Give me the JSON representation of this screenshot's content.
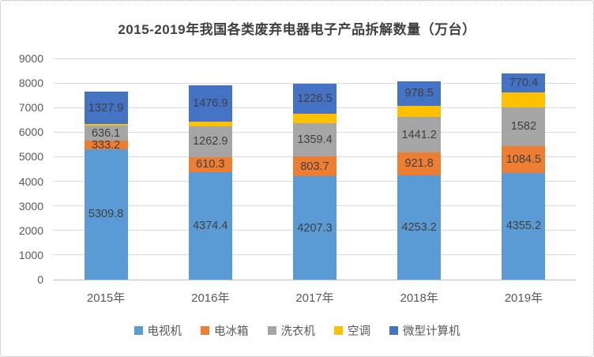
{
  "chart_data": {
    "type": "bar",
    "stacked": true,
    "title": "2015-2019年我国各类废弃电器电子产品拆解数量（万台）",
    "unit": "万台",
    "categories": [
      "2015年",
      "2016年",
      "2017年",
      "2018年",
      "2019年"
    ],
    "series": [
      {
        "key": "tv",
        "name": "电视机",
        "color": "#5B9BD5",
        "values": [
          5309.8,
          4374.4,
          4207.3,
          4253.2,
          4355.2
        ],
        "data_labels": [
          "5309.8",
          "4374.4",
          "4207.3",
          "4253.2",
          "4355.2"
        ]
      },
      {
        "key": "fridge",
        "name": "电冰箱",
        "color": "#ED7D31",
        "values": [
          333.2,
          610.3,
          803.7,
          921.8,
          1084.5
        ],
        "data_labels": [
          "333.2",
          "610.3",
          "803.7",
          "921.8",
          "1084.5"
        ]
      },
      {
        "key": "washing-machine",
        "name": "洗衣机",
        "color": "#A5A5A5",
        "values": [
          636.1,
          1262.9,
          1359.4,
          1441.2,
          1582
        ],
        "data_labels": [
          "636.1",
          "1262.9",
          "1359.4",
          "1441.2",
          "1582"
        ]
      },
      {
        "key": "air-conditioner",
        "name": "空调",
        "color": "#FFC000",
        "values": [
          40,
          185,
          375,
          465,
          590
        ],
        "data_labels": [
          "",
          "",
          "",
          "",
          ""
        ]
      },
      {
        "key": "pc",
        "name": "微型计算机",
        "color": "#4472C4",
        "values": [
          1327.9,
          1476.9,
          1226.5,
          978.5,
          770.4
        ],
        "data_labels": [
          "1327.9",
          "1476.9",
          "1226.5",
          "978.5",
          "770.4"
        ]
      }
    ],
    "ylim": [
      0,
      9000
    ],
    "ytick_step": 1000,
    "yticks": [
      "0",
      "1000",
      "2000",
      "3000",
      "4000",
      "5000",
      "6000",
      "7000",
      "8000",
      "9000"
    ],
    "grid": "horizontal",
    "legend_position": "bottom"
  }
}
